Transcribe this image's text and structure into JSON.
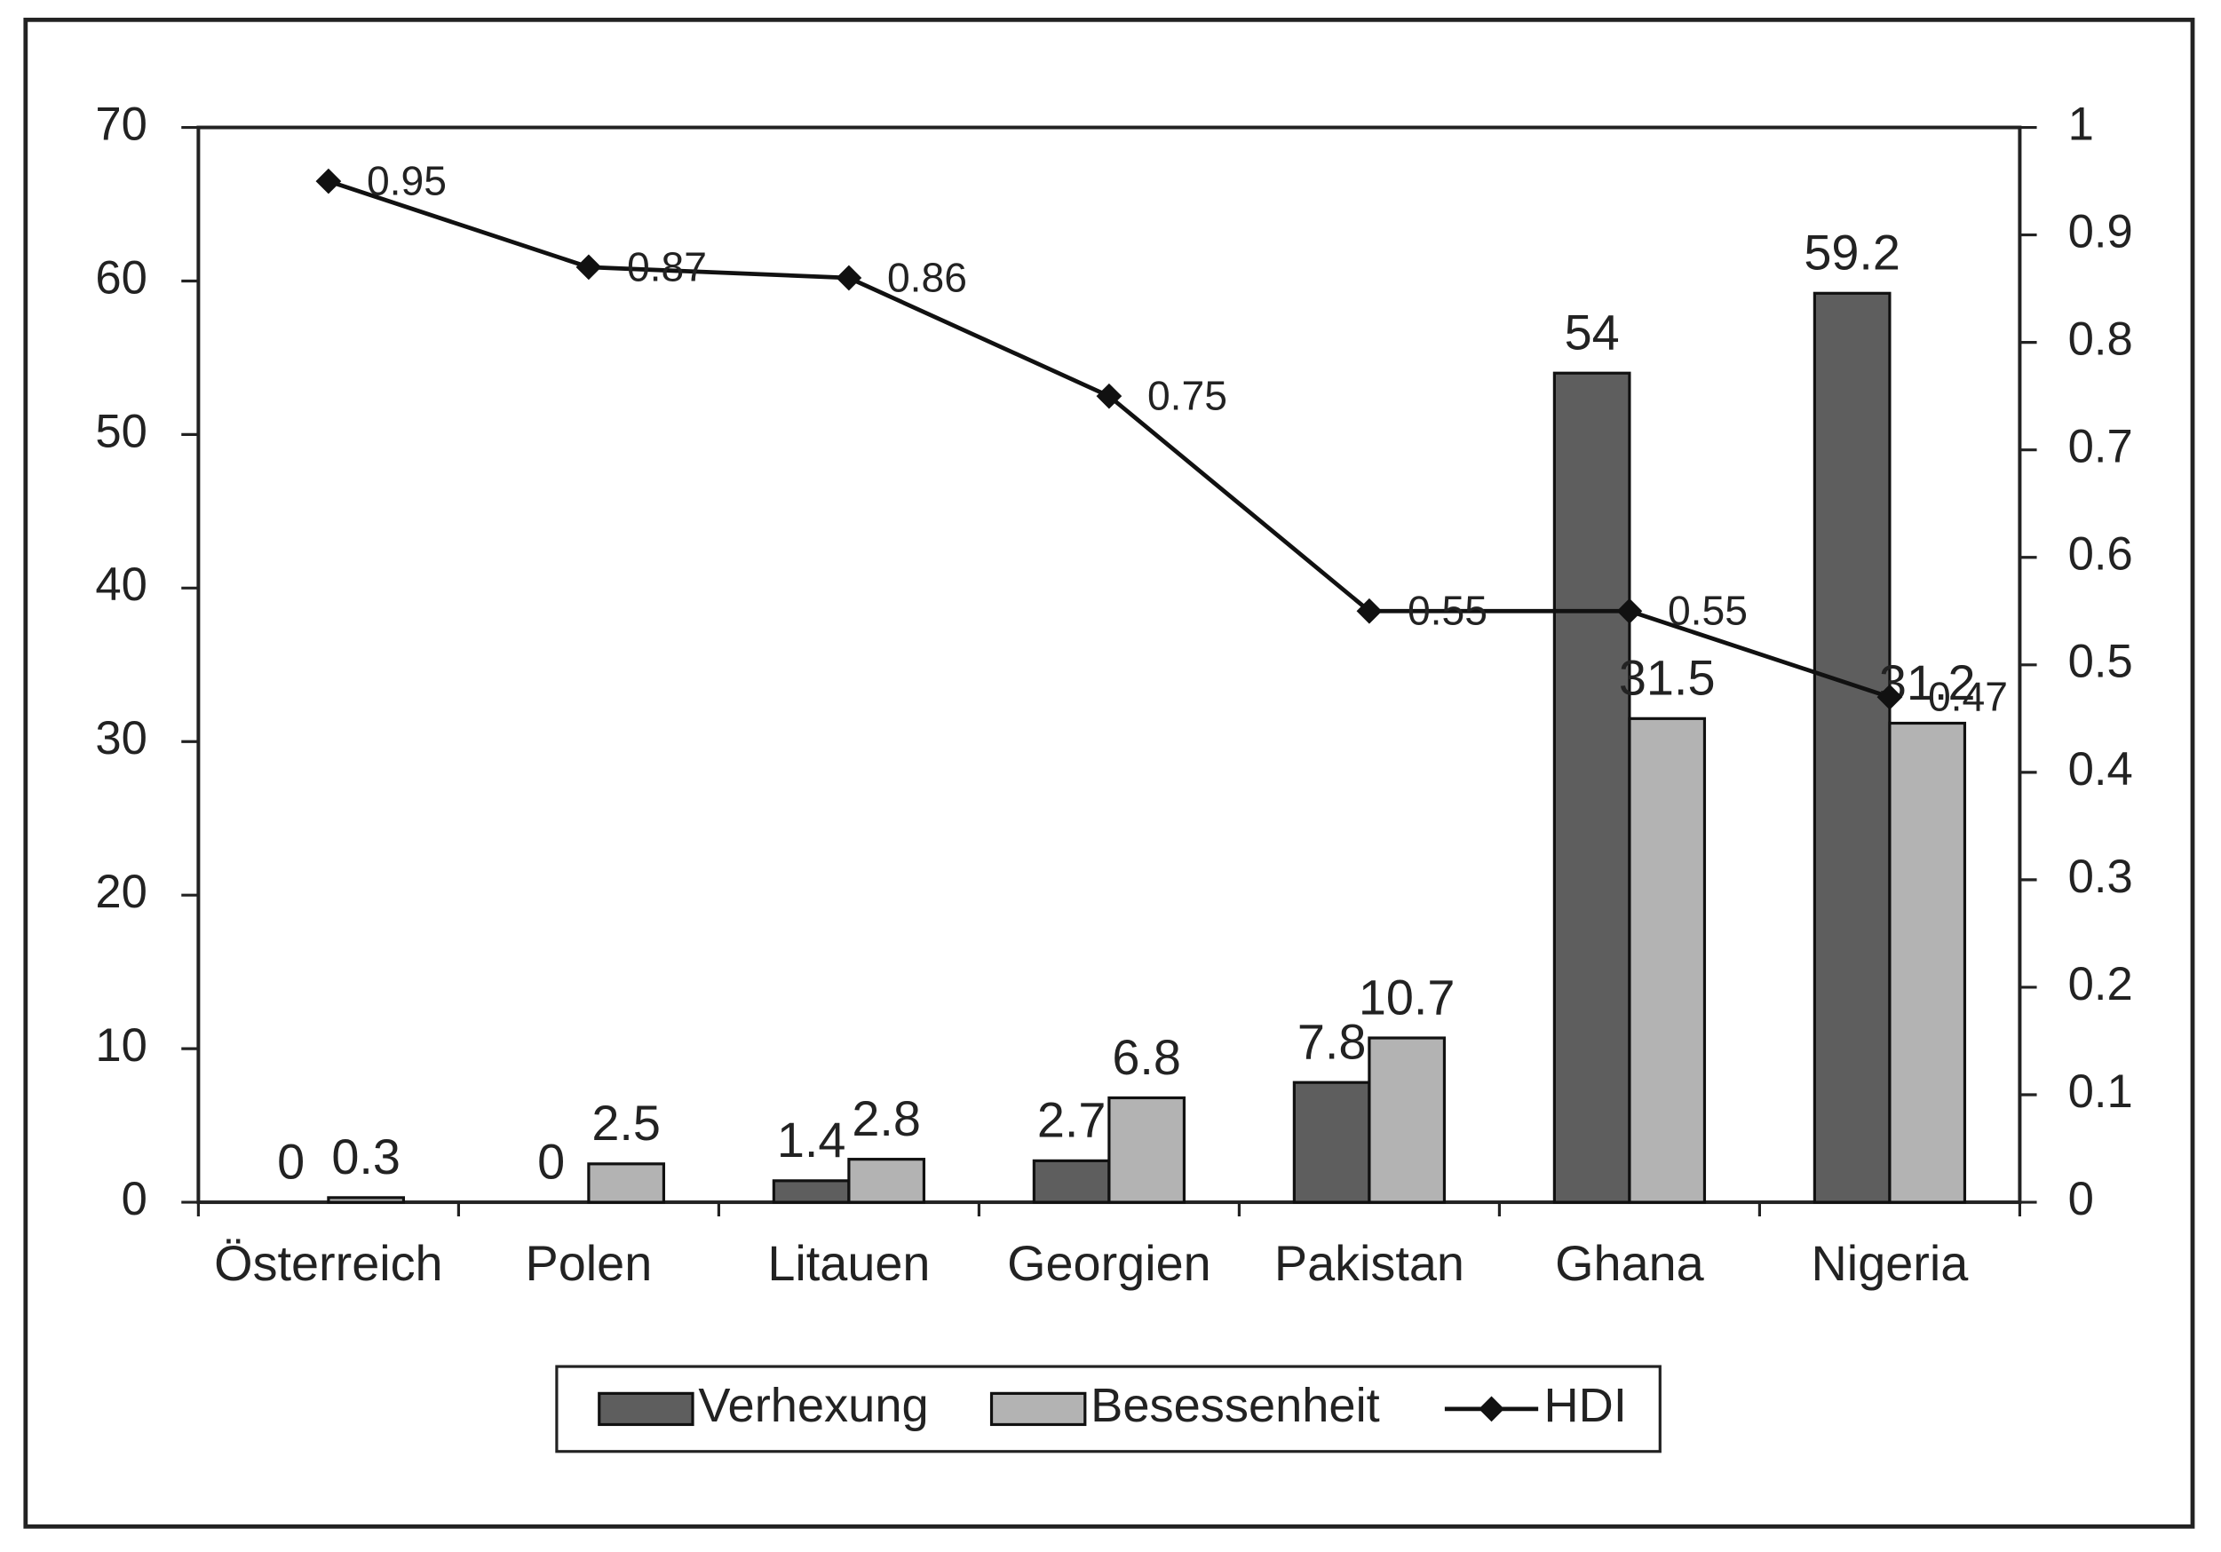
{
  "chart_data": {
    "type": "bar",
    "categories": [
      "Österreich",
      "Polen",
      "Litauen",
      "Georgien",
      "Pakistan",
      "Ghana",
      "Nigeria"
    ],
    "series": [
      {
        "name": "Verhexung",
        "color": "#5e5e5e",
        "values": [
          0,
          0,
          1.4,
          2.7,
          7.8,
          54,
          59.2
        ]
      },
      {
        "name": "Besessenheit",
        "color": "#b3b3b3",
        "values": [
          0.3,
          2.5,
          2.8,
          6.8,
          10.7,
          31.5,
          31.2
        ]
      },
      {
        "name": "HDI",
        "color": "#111111",
        "type": "line",
        "axis": "y2",
        "values": [
          0.95,
          0.87,
          0.86,
          0.75,
          0.55,
          0.55,
          0.47
        ]
      }
    ],
    "ylim": [
      0,
      70
    ],
    "yticks": [
      0,
      10,
      20,
      30,
      40,
      50,
      60,
      70
    ],
    "y2lim": [
      0,
      1
    ],
    "y2ticks": [
      0,
      0.1,
      0.2,
      0.3,
      0.4,
      0.5,
      0.6,
      0.7,
      0.8,
      0.9,
      1
    ],
    "legend": "bottom"
  }
}
